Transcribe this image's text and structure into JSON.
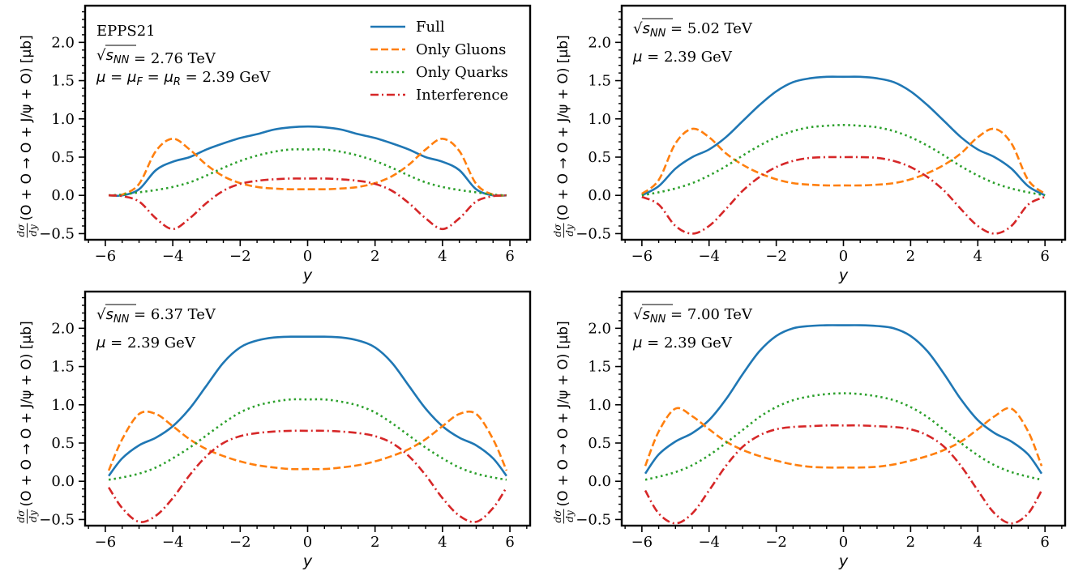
{
  "figure_title": "",
  "legend": {
    "entries": [
      {
        "label": "Full",
        "color": "#1f77b4",
        "dash": "solid"
      },
      {
        "label": "Only Gluons",
        "color": "#ff7f0e",
        "dash": "dashed"
      },
      {
        "label": "Only Quarks",
        "color": "#2ca02c",
        "dash": "dotted"
      },
      {
        "label": "Interference",
        "color": "#d62728",
        "dash": "dashdot"
      }
    ]
  },
  "shared": {
    "xlabel": "y",
    "ylabel": "dσ/dy (O + O → O + J/ψ + O) [μb]",
    "ylabel_frac_num": "dσ",
    "ylabel_frac_den": "dy",
    "ylabel_rest": "(O + O → O + J/ψ + O) [μb]",
    "xticks": [
      "−6",
      "−4",
      "−2",
      "0",
      "2",
      "4",
      "6"
    ],
    "yticks": [
      "−0.5",
      "0.0",
      "0.5",
      "1.0",
      "1.5",
      "2.0"
    ]
  },
  "chart_data": [
    {
      "type": "line",
      "title": "",
      "annotations": [
        "EPPS21",
        "√sNN = 2.76 TeV",
        "μ = μF = μR = 2.39 GeV"
      ],
      "energy": "2.76 TeV",
      "mu": "2.39 GeV",
      "xlabel": "y",
      "ylabel": "dσ/dy (O + O → O + J/ψ + O) [μb]",
      "xlim": [
        -6.6,
        6.6
      ],
      "ylim": [
        -0.58,
        2.48
      ],
      "x_range": [
        -5.9,
        5.9
      ],
      "series": [
        {
          "name": "Full",
          "x": [
            -5.9,
            -5.5,
            -5.0,
            -4.5,
            -4.0,
            -3.5,
            -3.0,
            -2.5,
            -2.0,
            -1.5,
            -1.0,
            -0.5,
            0,
            0.5,
            1.0,
            1.5,
            2.0,
            2.5,
            3.0,
            3.5,
            4.0,
            4.5,
            5.0,
            5.5,
            5.9
          ],
          "y": [
            0.0,
            0.0,
            0.08,
            0.33,
            0.44,
            0.5,
            0.6,
            0.68,
            0.75,
            0.8,
            0.86,
            0.89,
            0.9,
            0.89,
            0.86,
            0.8,
            0.75,
            0.68,
            0.6,
            0.5,
            0.44,
            0.33,
            0.08,
            0.0,
            0.0
          ]
        },
        {
          "name": "Only Gluons",
          "x": [
            -5.9,
            -5.5,
            -5.0,
            -4.5,
            -4.0,
            -3.5,
            -3.0,
            -2.5,
            -2.0,
            -1.5,
            -1.0,
            -0.5,
            0,
            0.5,
            1.0,
            1.5,
            2.0,
            2.5,
            3.0,
            3.5,
            4.0,
            4.5,
            5.0,
            5.5,
            5.9
          ],
          "y": [
            0.0,
            0.01,
            0.15,
            0.58,
            0.74,
            0.6,
            0.4,
            0.25,
            0.16,
            0.11,
            0.09,
            0.08,
            0.08,
            0.08,
            0.09,
            0.11,
            0.16,
            0.25,
            0.4,
            0.6,
            0.74,
            0.58,
            0.15,
            0.01,
            0.0
          ]
        },
        {
          "name": "Only Quarks",
          "x": [
            -5.9,
            -5.5,
            -5.0,
            -4.5,
            -4.0,
            -3.5,
            -3.0,
            -2.5,
            -2.0,
            -1.5,
            -1.0,
            -0.5,
            0,
            0.5,
            1.0,
            1.5,
            2.0,
            2.5,
            3.0,
            3.5,
            4.0,
            4.5,
            5.0,
            5.5,
            5.9
          ],
          "y": [
            0.0,
            0.01,
            0.04,
            0.07,
            0.11,
            0.17,
            0.26,
            0.36,
            0.45,
            0.52,
            0.57,
            0.6,
            0.6,
            0.6,
            0.57,
            0.52,
            0.45,
            0.36,
            0.26,
            0.17,
            0.11,
            0.07,
            0.04,
            0.01,
            0.0
          ]
        },
        {
          "name": "Interference",
          "x": [
            -5.9,
            -5.5,
            -5.0,
            -4.5,
            -4.0,
            -3.5,
            -3.0,
            -2.5,
            -2.0,
            -1.5,
            -1.0,
            -0.5,
            0,
            0.5,
            1.0,
            1.5,
            2.0,
            2.5,
            3.0,
            3.5,
            4.0,
            4.5,
            5.0,
            5.5,
            5.9
          ],
          "y": [
            0.0,
            -0.01,
            -0.08,
            -0.3,
            -0.44,
            -0.3,
            -0.1,
            0.06,
            0.15,
            0.19,
            0.21,
            0.22,
            0.22,
            0.22,
            0.21,
            0.19,
            0.15,
            0.06,
            -0.1,
            -0.3,
            -0.44,
            -0.3,
            -0.08,
            -0.01,
            0.0
          ]
        }
      ]
    },
    {
      "type": "line",
      "title": "",
      "annotations": [],
      "energy": "5.02 TeV",
      "mu": "2.39 GeV",
      "xlabel": "y",
      "ylabel": "dσ/dy (O + O → O + J/ψ + O) [μb]",
      "xlim": [
        -6.6,
        6.6
      ],
      "ylim": [
        -0.58,
        2.48
      ],
      "x_range": [
        -6.0,
        6.0
      ],
      "series": [
        {
          "name": "Full",
          "x": [
            -6.0,
            -5.5,
            -5.0,
            -4.5,
            -4.0,
            -3.5,
            -3.0,
            -2.5,
            -2.0,
            -1.5,
            -1.0,
            -0.5,
            0,
            0.5,
            1.0,
            1.5,
            2.0,
            2.5,
            3.0,
            3.5,
            4.0,
            4.5,
            5.0,
            5.5,
            6.0
          ],
          "y": [
            0.0,
            0.12,
            0.35,
            0.5,
            0.6,
            0.76,
            0.97,
            1.18,
            1.36,
            1.48,
            1.53,
            1.55,
            1.55,
            1.55,
            1.53,
            1.48,
            1.36,
            1.18,
            0.97,
            0.76,
            0.6,
            0.5,
            0.35,
            0.12,
            0.0
          ]
        },
        {
          "name": "Only Gluons",
          "x": [
            -6.0,
            -5.5,
            -5.0,
            -4.5,
            -4.0,
            -3.5,
            -3.0,
            -2.5,
            -2.0,
            -1.5,
            -1.0,
            -0.5,
            0,
            0.5,
            1.0,
            1.5,
            2.0,
            2.5,
            3.0,
            3.5,
            4.0,
            4.5,
            5.0,
            5.5,
            6.0
          ],
          "y": [
            0.02,
            0.2,
            0.68,
            0.87,
            0.76,
            0.55,
            0.4,
            0.29,
            0.21,
            0.16,
            0.14,
            0.13,
            0.13,
            0.13,
            0.14,
            0.16,
            0.21,
            0.29,
            0.4,
            0.55,
            0.76,
            0.87,
            0.68,
            0.2,
            0.02
          ]
        },
        {
          "name": "Only Quarks",
          "x": [
            -6.0,
            -5.5,
            -5.0,
            -4.5,
            -4.0,
            -3.5,
            -3.0,
            -2.5,
            -2.0,
            -1.5,
            -1.0,
            -0.5,
            0,
            0.5,
            1.0,
            1.5,
            2.0,
            2.5,
            3.0,
            3.5,
            4.0,
            4.5,
            5.0,
            5.5,
            6.0
          ],
          "y": [
            0.0,
            0.04,
            0.09,
            0.16,
            0.26,
            0.38,
            0.52,
            0.65,
            0.76,
            0.84,
            0.89,
            0.91,
            0.92,
            0.91,
            0.89,
            0.84,
            0.76,
            0.65,
            0.52,
            0.38,
            0.26,
            0.16,
            0.09,
            0.04,
            0.0
          ]
        },
        {
          "name": "Interference",
          "x": [
            -6.0,
            -5.5,
            -5.0,
            -4.5,
            -4.0,
            -3.5,
            -3.0,
            -2.5,
            -2.0,
            -1.5,
            -1.0,
            -0.5,
            0,
            0.5,
            1.0,
            1.5,
            2.0,
            2.5,
            3.0,
            3.5,
            4.0,
            4.5,
            5.0,
            5.5,
            6.0
          ],
          "y": [
            -0.02,
            -0.12,
            -0.4,
            -0.5,
            -0.4,
            -0.18,
            0.06,
            0.24,
            0.37,
            0.45,
            0.49,
            0.5,
            0.5,
            0.5,
            0.49,
            0.45,
            0.37,
            0.24,
            0.06,
            -0.18,
            -0.4,
            -0.5,
            -0.4,
            -0.12,
            -0.02
          ]
        }
      ]
    },
    {
      "type": "line",
      "title": "",
      "annotations": [],
      "energy": "6.37 TeV",
      "mu": "2.39 GeV",
      "xlabel": "y",
      "ylabel": "dσ/dy (O + O → O + J/ψ + O) [μb]",
      "xlim": [
        -6.6,
        6.6
      ],
      "ylim": [
        -0.58,
        2.48
      ],
      "x_range": [
        -5.9,
        5.9
      ],
      "series": [
        {
          "name": "Full",
          "x": [
            -5.9,
            -5.5,
            -5.0,
            -4.5,
            -4.0,
            -3.5,
            -3.0,
            -2.5,
            -2.0,
            -1.5,
            -1.0,
            -0.5,
            0,
            0.5,
            1.0,
            1.5,
            2.0,
            2.5,
            3.0,
            3.5,
            4.0,
            4.5,
            5.0,
            5.5,
            5.9
          ],
          "y": [
            0.07,
            0.3,
            0.47,
            0.57,
            0.72,
            0.95,
            1.25,
            1.55,
            1.75,
            1.84,
            1.88,
            1.89,
            1.89,
            1.89,
            1.88,
            1.84,
            1.75,
            1.55,
            1.25,
            0.95,
            0.72,
            0.57,
            0.47,
            0.3,
            0.07
          ]
        },
        {
          "name": "Only Gluons",
          "x": [
            -5.9,
            -5.5,
            -5.0,
            -4.5,
            -4.0,
            -3.5,
            -3.0,
            -2.5,
            -2.0,
            -1.5,
            -1.0,
            -0.5,
            0,
            0.5,
            1.0,
            1.5,
            2.0,
            2.5,
            3.0,
            3.5,
            4.0,
            4.5,
            5.0,
            5.5,
            5.9
          ],
          "y": [
            0.14,
            0.55,
            0.88,
            0.88,
            0.72,
            0.55,
            0.42,
            0.33,
            0.26,
            0.21,
            0.18,
            0.16,
            0.16,
            0.16,
            0.18,
            0.21,
            0.26,
            0.33,
            0.42,
            0.55,
            0.72,
            0.88,
            0.88,
            0.55,
            0.14
          ]
        },
        {
          "name": "Only Quarks",
          "x": [
            -5.9,
            -5.5,
            -5.0,
            -4.5,
            -4.0,
            -3.5,
            -3.0,
            -2.5,
            -2.0,
            -1.5,
            -1.0,
            -0.5,
            0,
            0.5,
            1.0,
            1.5,
            2.0,
            2.5,
            3.0,
            3.5,
            4.0,
            4.5,
            5.0,
            5.5,
            5.9
          ],
          "y": [
            0.02,
            0.05,
            0.1,
            0.18,
            0.3,
            0.44,
            0.6,
            0.76,
            0.9,
            0.99,
            1.04,
            1.07,
            1.07,
            1.07,
            1.04,
            0.99,
            0.9,
            0.76,
            0.6,
            0.44,
            0.3,
            0.18,
            0.1,
            0.05,
            0.02
          ]
        },
        {
          "name": "Interference",
          "x": [
            -5.9,
            -5.5,
            -5.0,
            -4.5,
            -4.0,
            -3.5,
            -3.0,
            -2.5,
            -2.0,
            -1.5,
            -1.0,
            -0.5,
            0,
            0.5,
            1.0,
            1.5,
            2.0,
            2.5,
            3.0,
            3.5,
            4.0,
            4.5,
            5.0,
            5.5,
            5.9
          ],
          "y": [
            -0.08,
            -0.35,
            -0.53,
            -0.45,
            -0.22,
            0.08,
            0.33,
            0.5,
            0.59,
            0.63,
            0.65,
            0.66,
            0.66,
            0.66,
            0.65,
            0.63,
            0.59,
            0.5,
            0.33,
            0.08,
            -0.22,
            -0.45,
            -0.53,
            -0.35,
            -0.08
          ]
        }
      ]
    },
    {
      "type": "line",
      "title": "",
      "annotations": [],
      "energy": "7.00 TeV",
      "mu": "2.39 GeV",
      "xlabel": "y",
      "ylabel": "dσ/dy (O + O → O + J/ψ + O) [μb]",
      "xlim": [
        -6.6,
        6.6
      ],
      "ylim": [
        -0.58,
        2.48
      ],
      "x_range": [
        -5.9,
        5.9
      ],
      "series": [
        {
          "name": "Full",
          "x": [
            -5.9,
            -5.5,
            -5.0,
            -4.5,
            -4.0,
            -3.5,
            -3.0,
            -2.5,
            -2.0,
            -1.5,
            -1.0,
            -0.5,
            0,
            0.5,
            1.0,
            1.5,
            2.0,
            2.5,
            3.0,
            3.5,
            4.0,
            4.5,
            5.0,
            5.5,
            5.9
          ],
          "y": [
            0.1,
            0.35,
            0.52,
            0.63,
            0.8,
            1.07,
            1.4,
            1.7,
            1.9,
            2.0,
            2.03,
            2.04,
            2.04,
            2.04,
            2.03,
            2.0,
            1.9,
            1.7,
            1.4,
            1.07,
            0.8,
            0.63,
            0.52,
            0.35,
            0.1
          ]
        },
        {
          "name": "Only Gluons",
          "x": [
            -5.9,
            -5.5,
            -5.0,
            -4.5,
            -4.0,
            -3.5,
            -3.0,
            -2.5,
            -2.0,
            -1.5,
            -1.0,
            -0.5,
            0,
            0.5,
            1.0,
            1.5,
            2.0,
            2.5,
            3.0,
            3.5,
            4.0,
            4.5,
            5.0,
            5.5,
            5.9
          ],
          "y": [
            0.2,
            0.65,
            0.95,
            0.85,
            0.68,
            0.52,
            0.41,
            0.33,
            0.27,
            0.22,
            0.19,
            0.18,
            0.18,
            0.18,
            0.19,
            0.22,
            0.27,
            0.33,
            0.41,
            0.52,
            0.68,
            0.85,
            0.95,
            0.65,
            0.2
          ]
        },
        {
          "name": "Only Quarks",
          "x": [
            -5.9,
            -5.5,
            -5.0,
            -4.5,
            -4.0,
            -3.5,
            -3.0,
            -2.5,
            -2.0,
            -1.5,
            -1.0,
            -0.5,
            0,
            0.5,
            1.0,
            1.5,
            2.0,
            2.5,
            3.0,
            3.5,
            4.0,
            4.5,
            5.0,
            5.5,
            5.9
          ],
          "y": [
            0.02,
            0.06,
            0.12,
            0.21,
            0.34,
            0.5,
            0.67,
            0.84,
            0.97,
            1.06,
            1.11,
            1.14,
            1.15,
            1.14,
            1.11,
            1.06,
            0.97,
            0.84,
            0.67,
            0.5,
            0.34,
            0.21,
            0.12,
            0.06,
            0.02
          ]
        },
        {
          "name": "Interference",
          "x": [
            -5.9,
            -5.5,
            -5.0,
            -4.5,
            -4.0,
            -3.5,
            -3.0,
            -2.5,
            -2.0,
            -1.5,
            -1.0,
            -0.5,
            0,
            0.5,
            1.0,
            1.5,
            2.0,
            2.5,
            3.0,
            3.5,
            4.0,
            4.5,
            5.0,
            5.5,
            5.9
          ],
          "y": [
            -0.12,
            -0.42,
            -0.55,
            -0.42,
            -0.12,
            0.2,
            0.45,
            0.6,
            0.68,
            0.71,
            0.72,
            0.73,
            0.73,
            0.73,
            0.72,
            0.71,
            0.68,
            0.6,
            0.45,
            0.2,
            -0.12,
            -0.42,
            -0.55,
            -0.42,
            -0.12
          ]
        }
      ]
    }
  ]
}
